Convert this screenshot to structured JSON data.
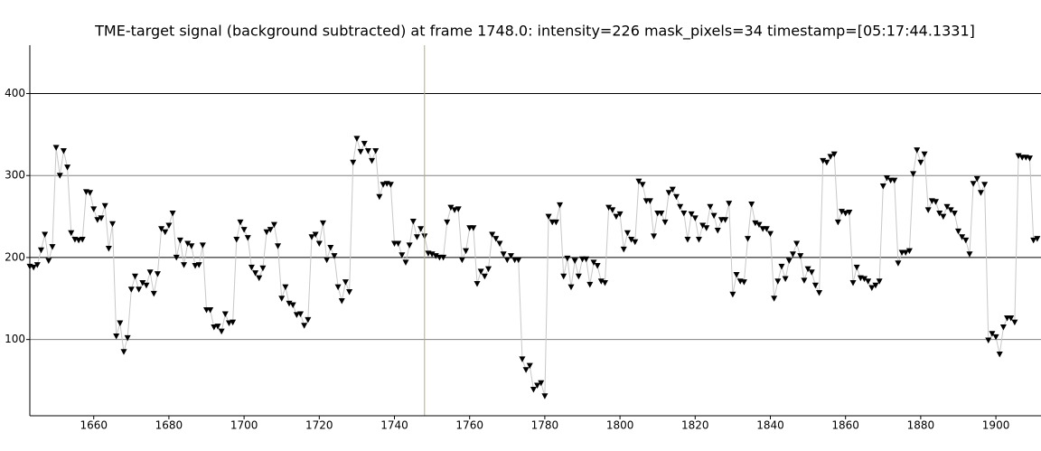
{
  "chart_data": {
    "type": "line",
    "title": "TME-target signal (background subtracted) at frame 1748.0: intensity=226 mask_pixels=34 timestamp=[05:17:44.1331]",
    "x": [
      1643,
      1644,
      1645,
      1646,
      1647,
      1648,
      1649,
      1650,
      1651,
      1652,
      1653,
      1654,
      1655,
      1656,
      1657,
      1658,
      1659,
      1660,
      1661,
      1662,
      1663,
      1664,
      1665,
      1666,
      1667,
      1668,
      1669,
      1670,
      1671,
      1672,
      1673,
      1674,
      1675,
      1676,
      1677,
      1678,
      1679,
      1680,
      1681,
      1682,
      1683,
      1684,
      1685,
      1686,
      1687,
      1688,
      1689,
      1690,
      1691,
      1692,
      1693,
      1694,
      1695,
      1696,
      1697,
      1698,
      1699,
      1700,
      1701,
      1702,
      1703,
      1704,
      1705,
      1706,
      1707,
      1708,
      1709,
      1710,
      1711,
      1712,
      1713,
      1714,
      1715,
      1716,
      1717,
      1718,
      1719,
      1720,
      1721,
      1722,
      1723,
      1724,
      1725,
      1726,
      1727,
      1728,
      1729,
      1730,
      1731,
      1732,
      1733,
      1734,
      1735,
      1736,
      1737,
      1738,
      1739,
      1740,
      1741,
      1742,
      1743,
      1744,
      1745,
      1746,
      1747,
      1748,
      1749,
      1750,
      1751,
      1752,
      1753,
      1754,
      1755,
      1756,
      1757,
      1758,
      1759,
      1760,
      1761,
      1762,
      1763,
      1764,
      1765,
      1766,
      1767,
      1768,
      1769,
      1770,
      1771,
      1772,
      1773,
      1774,
      1775,
      1776,
      1777,
      1778,
      1779,
      1780,
      1781,
      1782,
      1783,
      1784,
      1785,
      1786,
      1787,
      1788,
      1789,
      1790,
      1791,
      1792,
      1793,
      1794,
      1795,
      1796,
      1797,
      1798,
      1799,
      1800,
      1801,
      1802,
      1803,
      1804,
      1805,
      1806,
      1807,
      1808,
      1809,
      1810,
      1811,
      1812,
      1813,
      1814,
      1815,
      1816,
      1817,
      1818,
      1819,
      1820,
      1821,
      1822,
      1823,
      1824,
      1825,
      1826,
      1827,
      1828,
      1829,
      1830,
      1831,
      1832,
      1833,
      1834,
      1835,
      1836,
      1837,
      1838,
      1839,
      1840,
      1841,
      1842,
      1843,
      1844,
      1845,
      1846,
      1847,
      1848,
      1849,
      1850,
      1851,
      1852,
      1853,
      1854,
      1855,
      1856,
      1857,
      1858,
      1859,
      1860,
      1861,
      1862,
      1863,
      1864,
      1865,
      1866,
      1867,
      1868,
      1869,
      1870,
      1871,
      1872,
      1873,
      1874,
      1875,
      1876,
      1877,
      1878,
      1879,
      1880,
      1881,
      1882,
      1883,
      1884,
      1885,
      1886,
      1887,
      1888,
      1889,
      1890,
      1891,
      1892,
      1893,
      1894,
      1895,
      1896,
      1897,
      1898,
      1899,
      1900,
      1901,
      1902,
      1903,
      1904,
      1905,
      1906,
      1907,
      1908,
      1909,
      1910,
      1911
    ],
    "values": [
      189,
      188,
      191,
      209,
      228,
      196,
      213,
      334,
      300,
      330,
      310,
      230,
      222,
      221,
      222,
      280,
      279,
      259,
      246,
      248,
      263,
      211,
      241,
      104,
      120,
      85,
      102,
      161,
      177,
      161,
      169,
      166,
      182,
      156,
      180,
      235,
      231,
      239,
      254,
      200,
      221,
      191,
      217,
      214,
      190,
      191,
      215,
      136,
      136,
      115,
      116,
      110,
      131,
      120,
      121,
      222,
      243,
      234,
      224,
      188,
      181,
      175,
      187,
      231,
      234,
      240,
      214,
      150,
      164,
      144,
      142,
      130,
      131,
      117,
      124,
      225,
      228,
      217,
      242,
      197,
      212,
      202,
      164,
      147,
      170,
      158,
      316,
      345,
      329,
      339,
      330,
      318,
      330,
      274,
      289,
      290,
      289,
      217,
      217,
      203,
      194,
      215,
      244,
      225,
      235,
      226,
      205,
      204,
      202,
      200,
      200,
      243,
      261,
      258,
      259,
      197,
      208,
      236,
      236,
      168,
      183,
      177,
      186,
      228,
      223,
      217,
      204,
      197,
      202,
      197,
      197,
      76,
      63,
      68,
      39,
      44,
      47,
      31,
      250,
      243,
      243,
      264,
      177,
      199,
      164,
      196,
      177,
      198,
      198,
      167,
      194,
      190,
      171,
      169,
      261,
      258,
      250,
      253,
      210,
      230,
      222,
      219,
      293,
      289,
      269,
      269,
      226,
      254,
      254,
      243,
      279,
      283,
      274,
      262,
      254,
      222,
      253,
      248,
      222,
      239,
      236,
      262,
      251,
      233,
      246,
      246,
      266,
      155,
      179,
      171,
      170,
      223,
      265,
      242,
      240,
      235,
      235,
      229,
      150,
      171,
      189,
      174,
      196,
      204,
      217,
      202,
      172,
      186,
      182,
      166,
      157,
      318,
      316,
      323,
      326,
      243,
      256,
      254,
      255,
      169,
      188,
      175,
      174,
      171,
      163,
      166,
      171,
      287,
      297,
      294,
      294,
      193,
      206,
      206,
      208,
      302,
      331,
      316,
      326,
      258,
      269,
      268,
      254,
      250,
      262,
      258,
      254,
      232,
      225,
      221,
      204,
      290,
      296,
      279,
      289,
      99,
      107,
      103,
      82,
      115,
      126,
      126,
      121,
      324,
      322,
      322,
      321,
      221,
      223
    ],
    "color": "#c8c8c8",
    "marker_color": "#000000",
    "cursor": 1748,
    "cursor_color": "#b5ad7a",
    "xlim": [
      1643,
      1912
    ],
    "ylim": [
      7,
      459
    ],
    "xticks": [
      1660,
      1680,
      1700,
      1720,
      1740,
      1760,
      1780,
      1800,
      1820,
      1840,
      1860,
      1880,
      1900
    ],
    "yticks": [
      100,
      200,
      300,
      400
    ],
    "grid": true
  }
}
